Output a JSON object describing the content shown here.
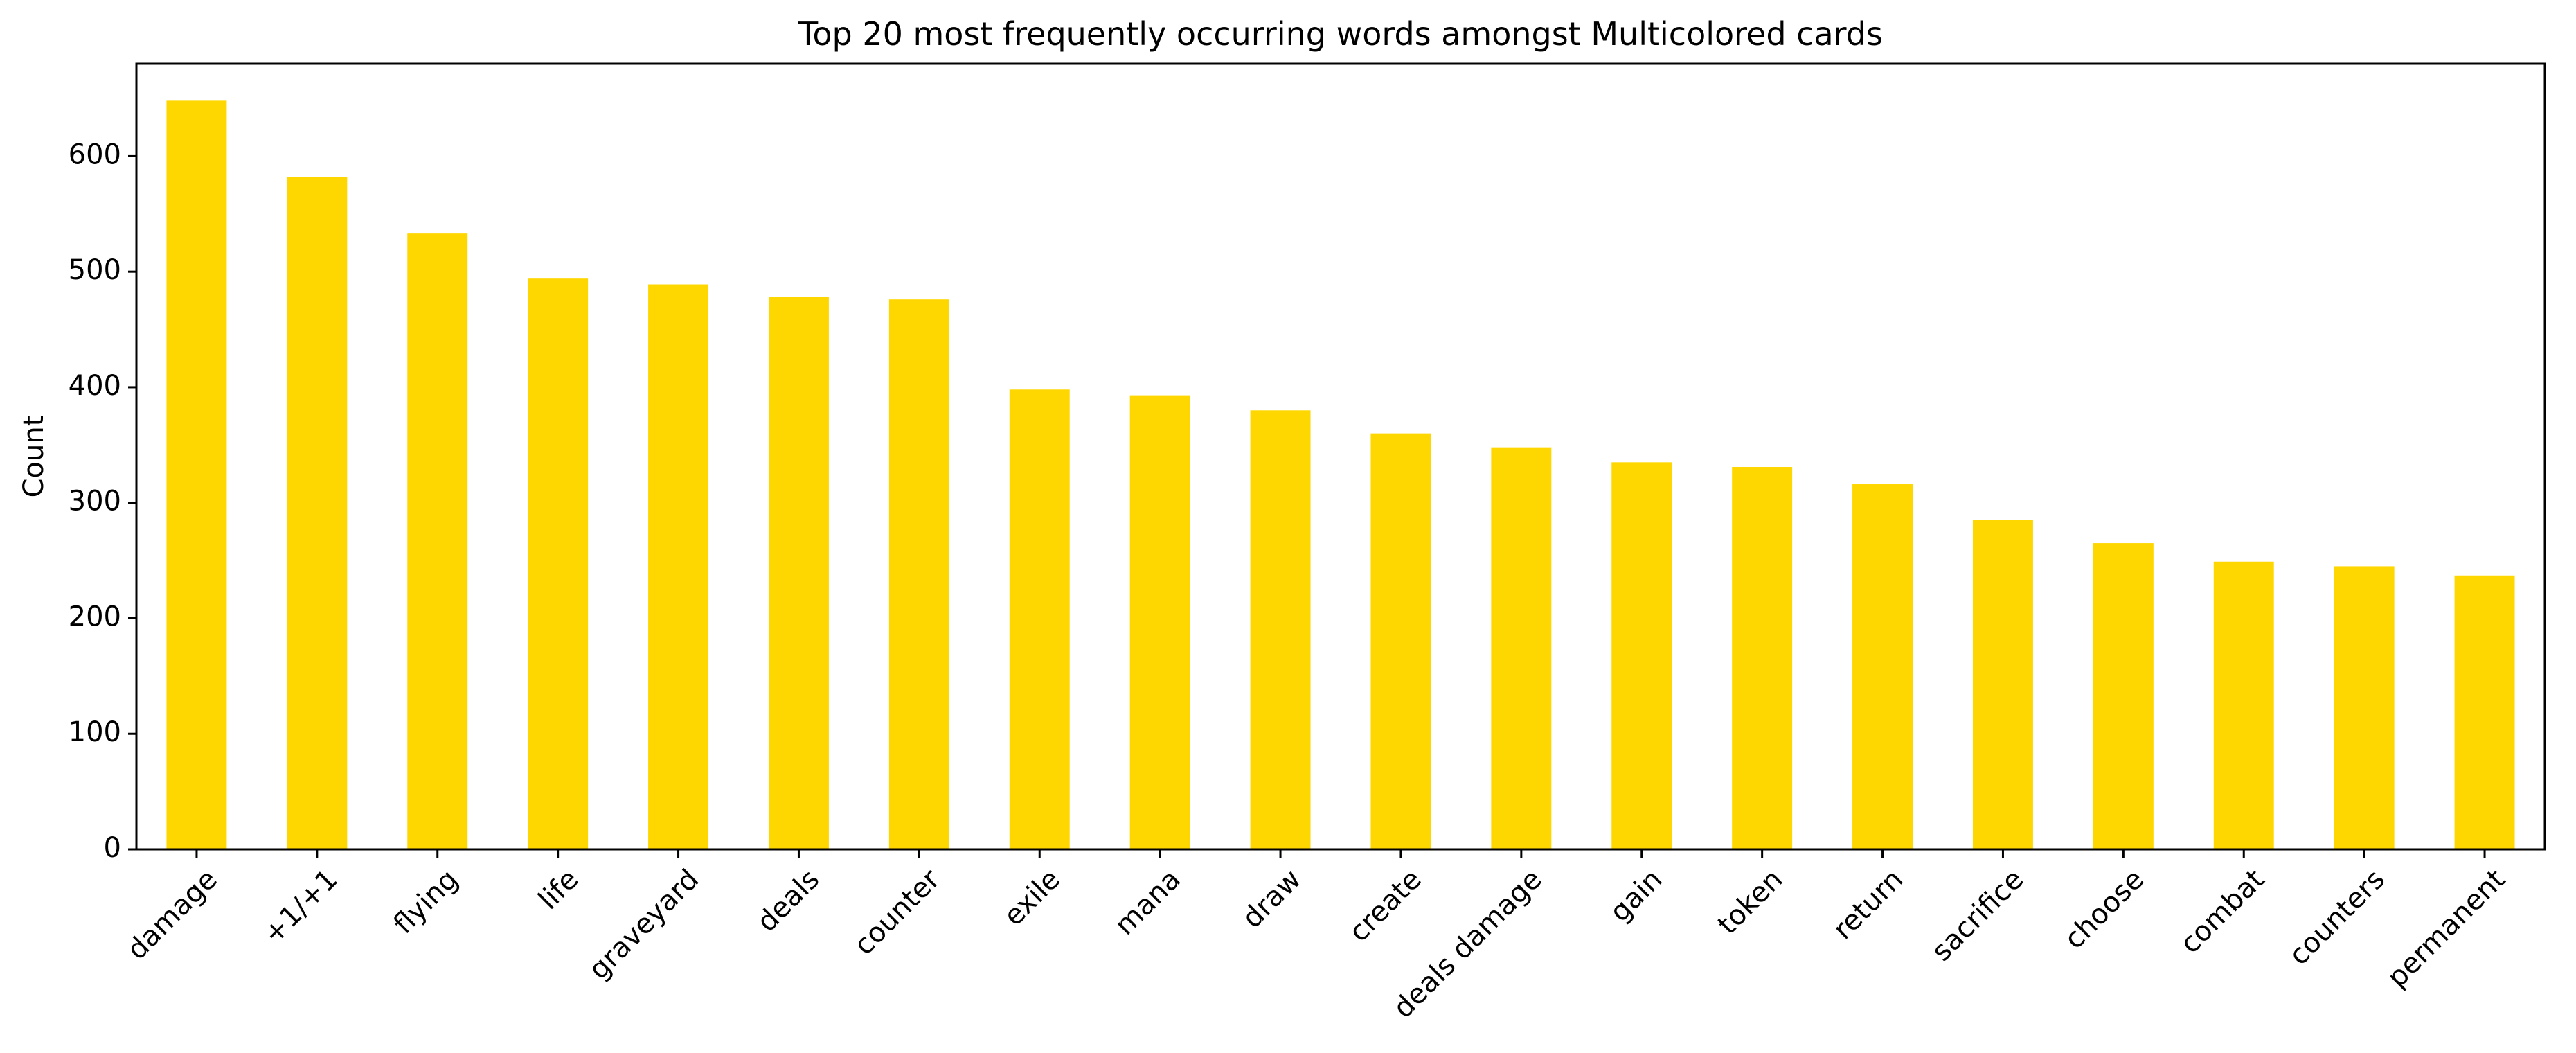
{
  "chart_data": {
    "type": "bar",
    "title": "Top 20 most frequently occurring words amongst Multicolored cards",
    "xlabel": "",
    "ylabel": "Count",
    "categories": [
      "damage",
      "+1/+1",
      "flying",
      "life",
      "graveyard",
      "deals",
      "counter",
      "exile",
      "mana",
      "draw",
      "create",
      "deals damage",
      "gain",
      "token",
      "return",
      "sacrifice",
      "choose",
      "combat",
      "counters",
      "permanent"
    ],
    "values": [
      648,
      582,
      533,
      494,
      489,
      478,
      476,
      398,
      393,
      380,
      360,
      348,
      335,
      331,
      316,
      285,
      265,
      249,
      245,
      237
    ],
    "ylim": [
      0,
      680
    ],
    "yticks": [
      0,
      100,
      200,
      300,
      400,
      500,
      600
    ],
    "bar_color": "#FFD700",
    "grid": false,
    "legend": "none"
  }
}
